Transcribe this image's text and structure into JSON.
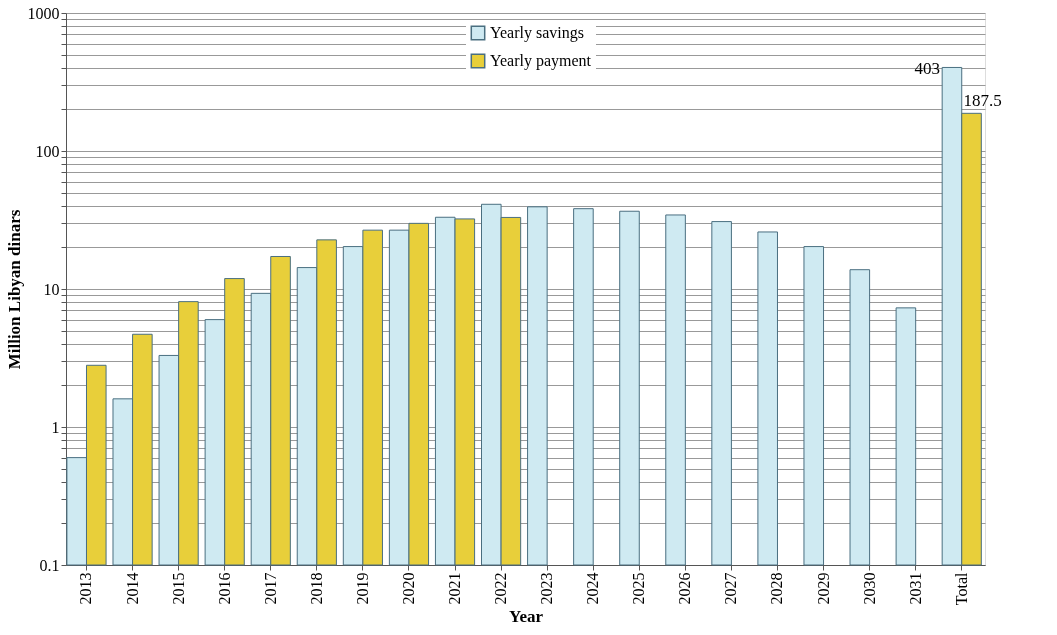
{
  "chart_data": {
    "type": "bar",
    "xlabel": "Year",
    "ylabel": "Million Libyan dinars",
    "categories": [
      "2013",
      "2014",
      "2015",
      "2016",
      "2017",
      "2018",
      "2019",
      "2020",
      "2021",
      "2022",
      "2023",
      "2024",
      "2025",
      "2026",
      "2027",
      "2028",
      "2029",
      "2030",
      "2031",
      "Total"
    ],
    "series": [
      {
        "name": "Yearly savings",
        "color": "#cfeaf2",
        "values": [
          0.6,
          1.6,
          3.3,
          6.0,
          9.3,
          14.3,
          20.3,
          26.7,
          33.1,
          41.1,
          39.4,
          38.2,
          36.6,
          34.4,
          30.8,
          25.9,
          20.3,
          13.8,
          7.3,
          403
        ],
        "value_labels": [
          null,
          null,
          null,
          null,
          null,
          null,
          null,
          null,
          null,
          null,
          null,
          null,
          null,
          null,
          null,
          null,
          null,
          null,
          null,
          "403"
        ]
      },
      {
        "name": "Yearly payment",
        "color": "#e8cf3a",
        "values": [
          2.8,
          4.7,
          8.1,
          11.9,
          17.2,
          22.7,
          26.7,
          29.9,
          32.2,
          33.0,
          null,
          null,
          null,
          null,
          null,
          null,
          null,
          null,
          null,
          187.5
        ],
        "value_labels": [
          null,
          null,
          null,
          null,
          null,
          null,
          null,
          null,
          null,
          null,
          null,
          null,
          null,
          null,
          null,
          null,
          null,
          null,
          null,
          "187.5"
        ]
      }
    ],
    "log": true,
    "ylim": [
      0.1,
      1000
    ],
    "yticks": [
      0.1,
      {
        "value": 0.2,
        "label": null
      },
      {
        "value": 0.3,
        "label": null
      },
      {
        "value": 0.4,
        "label": null
      },
      {
        "value": 0.5,
        "label": null
      },
      {
        "value": 0.6,
        "label": null
      },
      {
        "value": 0.7,
        "label": null
      },
      {
        "value": 0.8,
        "label": null
      },
      {
        "value": 0.9,
        "label": null
      },
      1,
      {
        "value": 2,
        "label": null
      },
      {
        "value": 3,
        "label": null
      },
      {
        "value": 4,
        "label": null
      },
      {
        "value": 5,
        "label": null
      },
      {
        "value": 6,
        "label": null
      },
      {
        "value": 7,
        "label": null
      },
      {
        "value": 8,
        "label": null
      },
      {
        "value": 9,
        "label": null
      },
      10,
      {
        "value": 20,
        "label": null
      },
      {
        "value": 30,
        "label": null
      },
      {
        "value": 40,
        "label": null
      },
      {
        "value": 50,
        "label": null
      },
      {
        "value": 60,
        "label": null
      },
      {
        "value": 70,
        "label": null
      },
      {
        "value": 80,
        "label": null
      },
      {
        "value": 90,
        "label": null
      },
      100,
      {
        "value": 200,
        "label": null
      },
      {
        "value": 300,
        "label": null
      },
      {
        "value": 400,
        "label": null
      },
      {
        "value": 500,
        "label": null
      },
      {
        "value": 600,
        "label": null
      },
      {
        "value": 700,
        "label": null
      },
      {
        "value": 800,
        "label": null
      },
      {
        "value": 900,
        "label": null
      },
      1000
    ],
    "grid": "y",
    "legend": "top"
  }
}
